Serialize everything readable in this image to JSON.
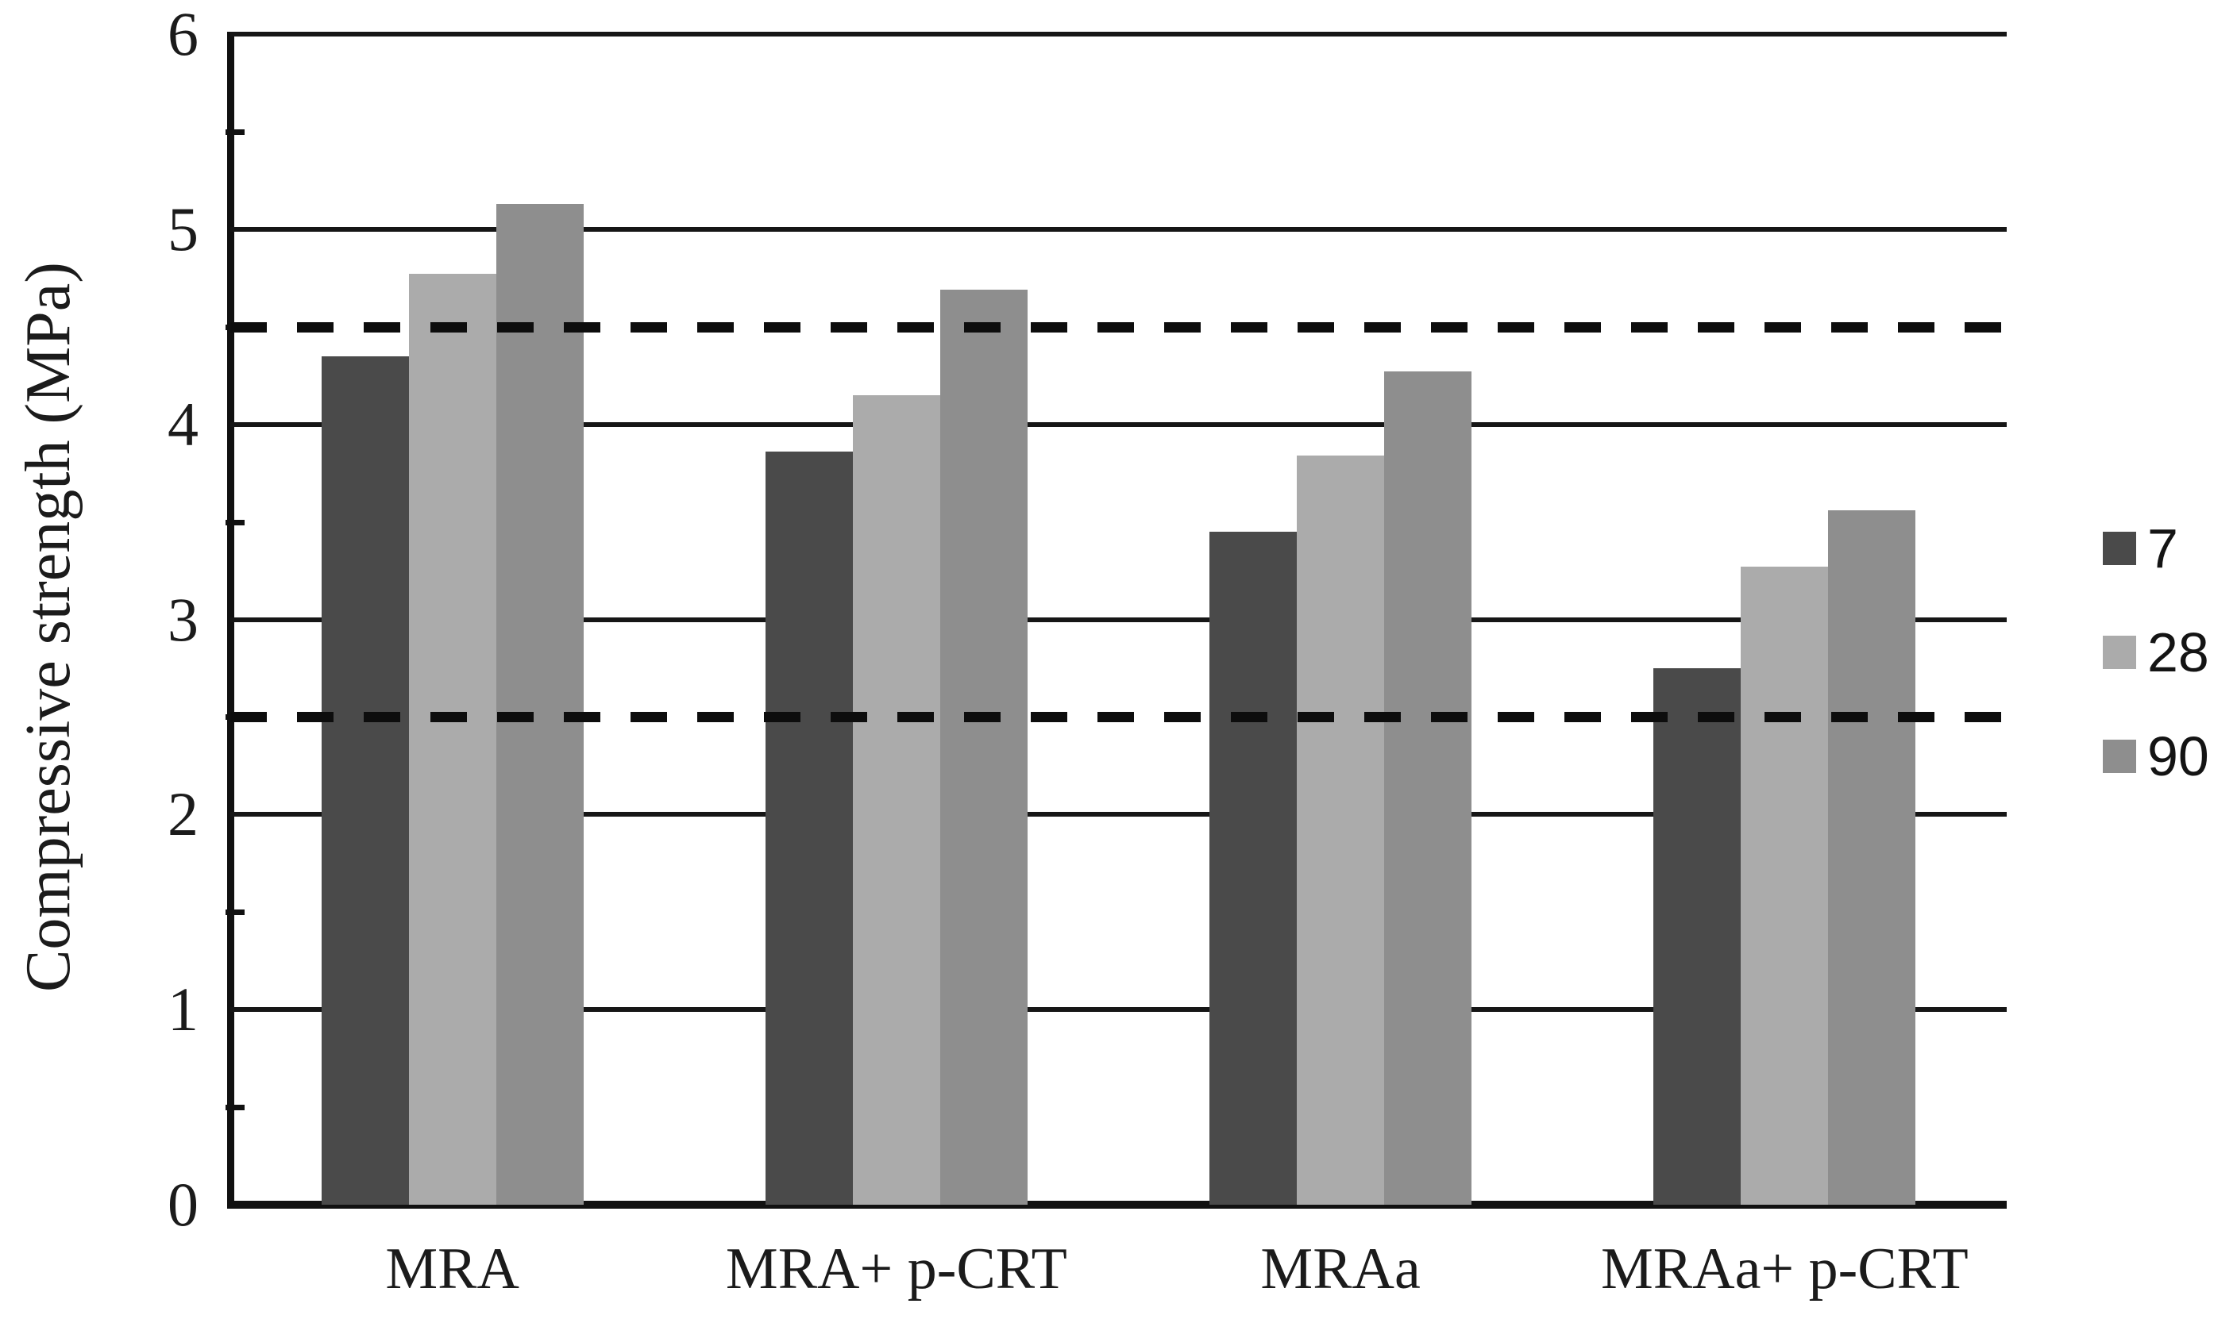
{
  "chart_data": {
    "type": "bar",
    "title": "",
    "xlabel": "",
    "ylabel": "Compressive strength (MPa)",
    "categories": [
      "MRA",
      "MRA+ p-CRT",
      "MRAa",
      "MRAa+ p-CRT"
    ],
    "series": [
      {
        "name": "7",
        "color": "#4a4a4a",
        "values": [
          4.35,
          3.86,
          3.45,
          2.75
        ]
      },
      {
        "name": "28",
        "color": "#ababab",
        "values": [
          4.77,
          4.15,
          3.84,
          3.27
        ]
      },
      {
        "name": "90",
        "color": "#8e8e8e",
        "values": [
          5.13,
          4.69,
          4.27,
          3.56
        ]
      }
    ],
    "ylim": [
      0,
      6
    ],
    "yticks": [
      0,
      1,
      2,
      3,
      4,
      5,
      6
    ],
    "minor_tick_step": 0.5,
    "grid": true,
    "gridline_values": [
      1,
      2,
      3,
      4,
      5,
      6
    ],
    "reference_lines": [
      {
        "value": 4.5,
        "style": "dashed",
        "color": "#0d0d0d"
      },
      {
        "value": 2.5,
        "style": "dashed",
        "color": "#0d0d0d"
      }
    ],
    "legend_position": "right",
    "legend_items": [
      "7",
      "28",
      "90"
    ]
  }
}
